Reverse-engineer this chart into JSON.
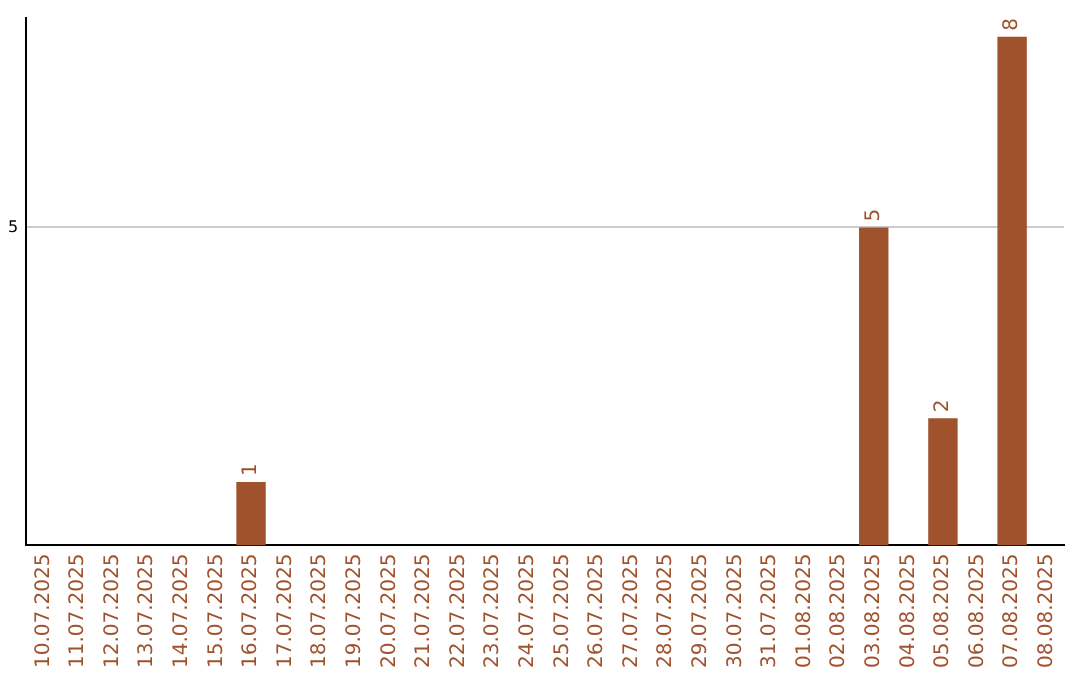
{
  "chart_data": {
    "type": "bar",
    "categories": [
      "10.07.2025",
      "11.07.2025",
      "12.07.2025",
      "13.07.2025",
      "14.07.2025",
      "15.07.2025",
      "16.07.2025",
      "17.07.2025",
      "18.07.2025",
      "19.07.2025",
      "20.07.2025",
      "21.07.2025",
      "22.07.2025",
      "23.07.2025",
      "24.07.2025",
      "25.07.2025",
      "26.07.2025",
      "27.07.2025",
      "28.07.2025",
      "29.07.2025",
      "30.07.2025",
      "31.07.2025",
      "01.08.2025",
      "02.08.2025",
      "03.08.2025",
      "04.08.2025",
      "05.08.2025",
      "06.08.2025",
      "07.08.2025",
      "08.08.2025"
    ],
    "values": [
      0,
      0,
      0,
      0,
      0,
      0,
      1,
      0,
      0,
      0,
      0,
      0,
      0,
      0,
      0,
      0,
      0,
      0,
      0,
      0,
      0,
      0,
      0,
      0,
      5,
      0,
      2,
      0,
      8,
      0
    ],
    "value_labels": [
      null,
      null,
      null,
      null,
      null,
      null,
      "1",
      null,
      null,
      null,
      null,
      null,
      null,
      null,
      null,
      null,
      null,
      null,
      null,
      null,
      null,
      null,
      null,
      null,
      "5",
      null,
      "2",
      null,
      "8",
      null
    ],
    "color": "#a0522d",
    "ylim": [
      0,
      8.3
    ],
    "yticks": [
      5
    ],
    "grid": "y",
    "legend": false
  }
}
